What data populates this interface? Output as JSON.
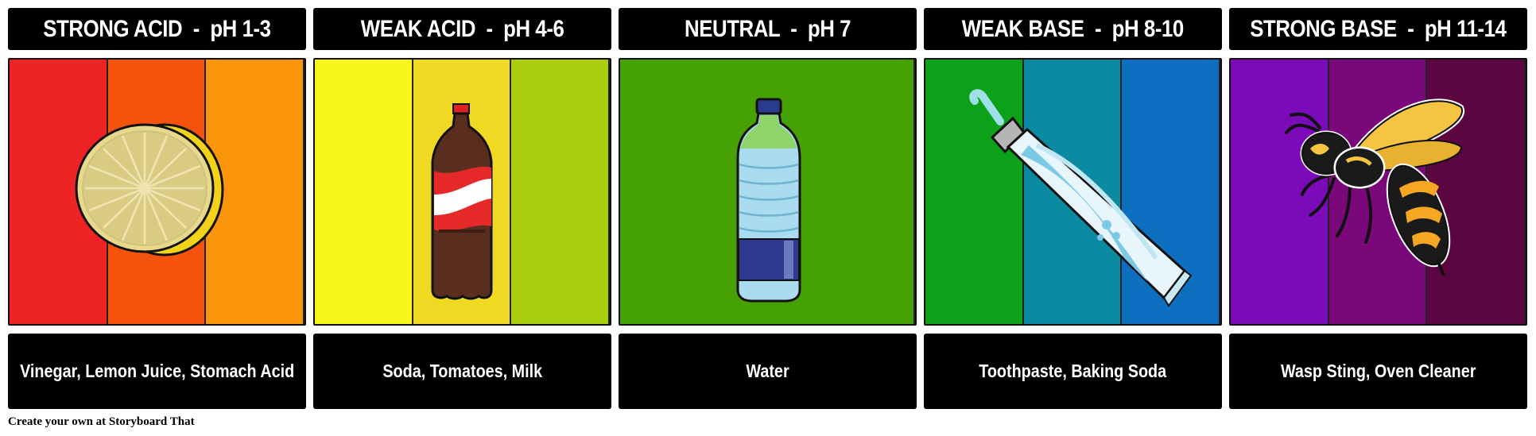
{
  "cells": [
    {
      "title": "STRONG ACID  -  pH 1-3",
      "caption": "Vinegar, Lemon Juice, Stomach Acid",
      "colors": [
        "#ee2424",
        "#f4530e",
        "#fb950c"
      ],
      "icon": "lemon-icon"
    },
    {
      "title": "WEAK ACID  -  pH 4-6",
      "caption": "Soda, Tomatoes, Milk",
      "colors": [
        "#f8f519",
        "#efd923",
        "#aacd10"
      ],
      "icon": "soda-bottle-icon"
    },
    {
      "title": "NEUTRAL  -  pH 7",
      "caption": "Water",
      "colors": [
        "#46a204"
      ],
      "icon": "water-bottle-icon"
    },
    {
      "title": "WEAK BASE  -  pH 8-10",
      "caption": "Toothpaste, Baking Soda",
      "colors": [
        "#0da11a",
        "#0b8aa1",
        "#0e6fc0"
      ],
      "icon": "toothpaste-icon"
    },
    {
      "title": "STRONG BASE  -  pH 11-14",
      "caption": "Wasp Sting, Oven Cleaner",
      "colors": [
        "#7b0ab8",
        "#7a087a",
        "#5c0641"
      ],
      "icon": "wasp-icon"
    }
  ],
  "footer": "Create your own at Storyboard That"
}
